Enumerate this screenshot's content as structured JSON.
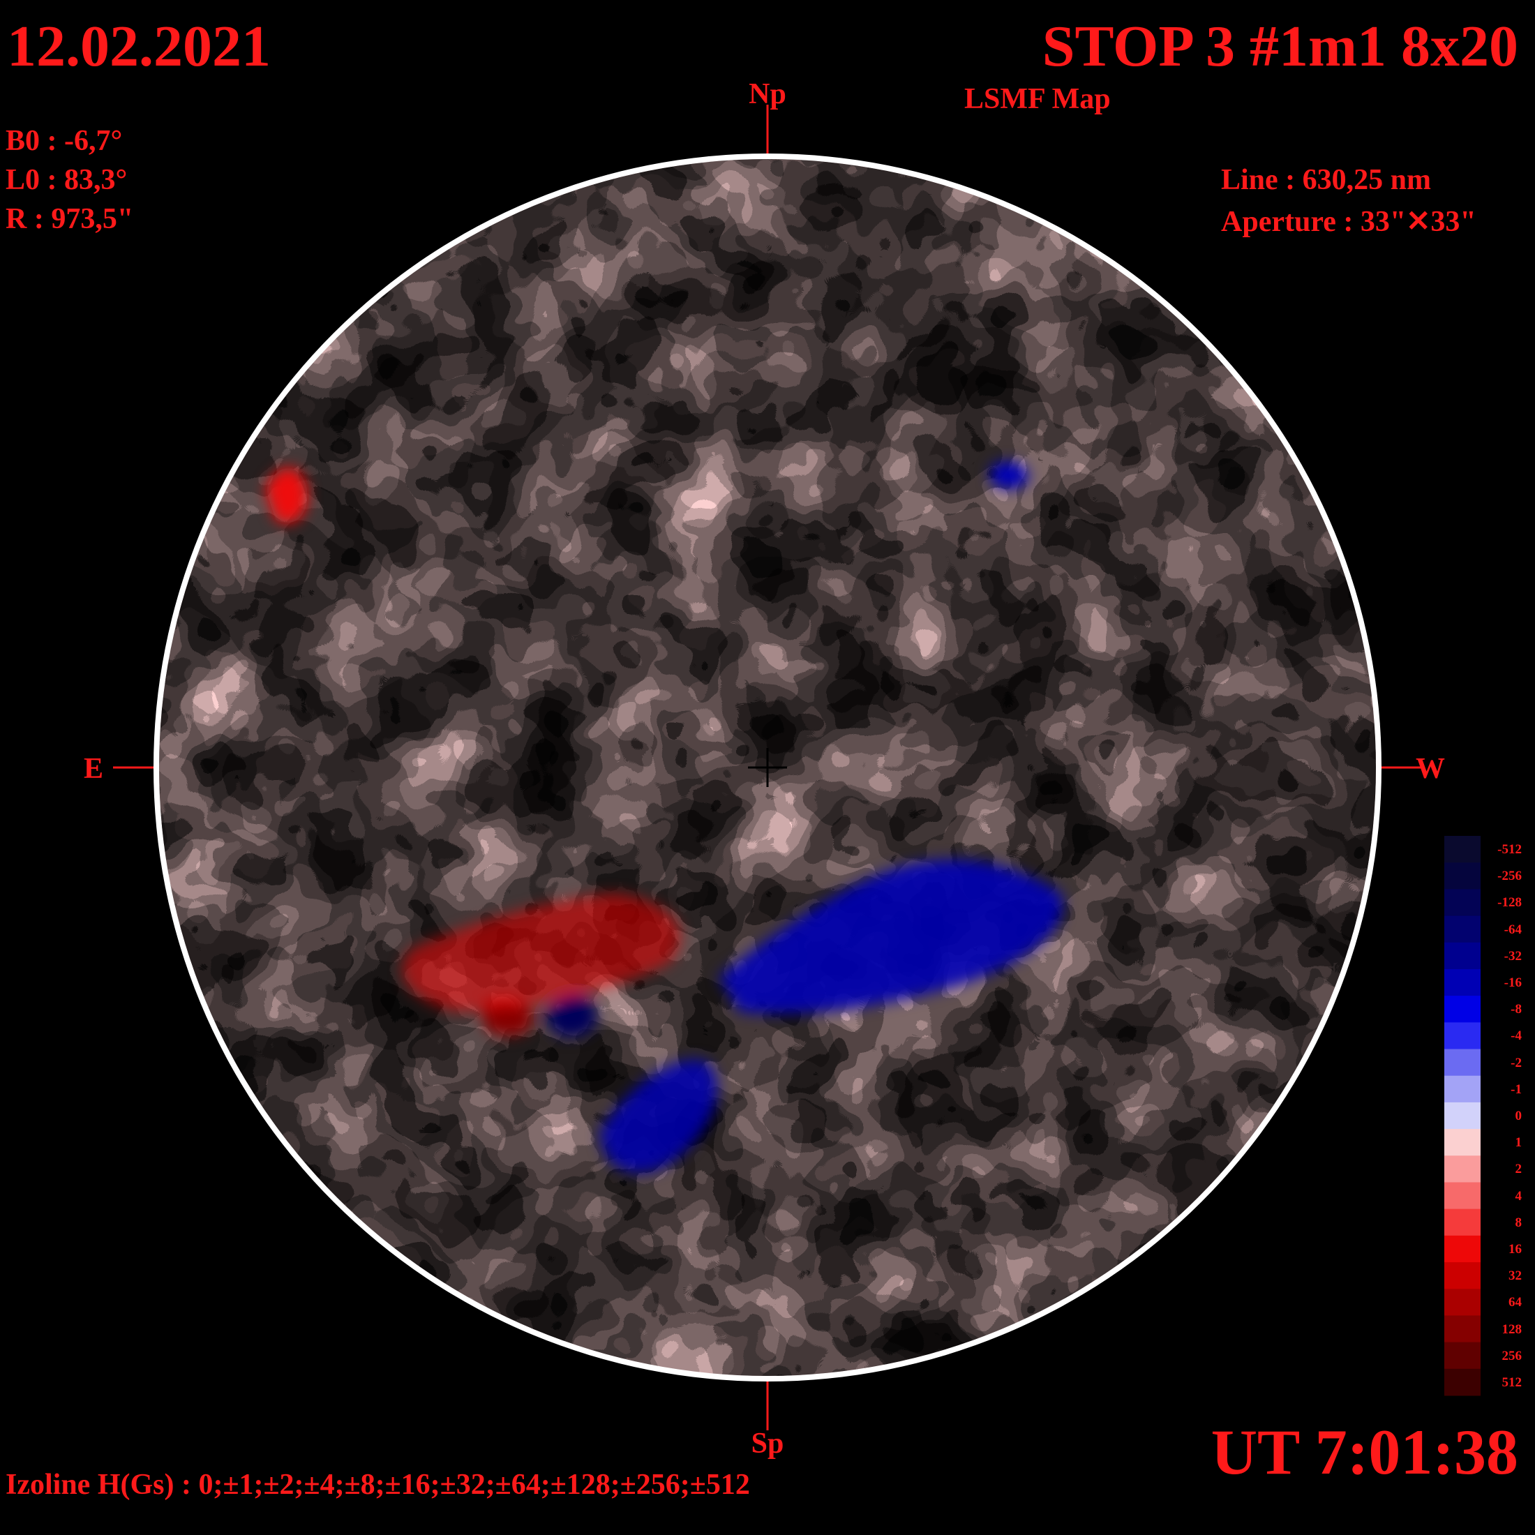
{
  "header": {
    "date": "12.02.2021",
    "title": "STOP 3 #1m1 8x20",
    "subtitle": "LSMF  Map"
  },
  "params": {
    "b0": "B0 : -6,7°",
    "l0": "L0 : 83,3°",
    "r": "R  : 973,5\"",
    "line": "Line :  630,25 nm",
    "aperture": "Aperture : 33\"✕33\""
  },
  "compass": {
    "north": "Np",
    "south": "Sp",
    "east": "E",
    "west": "W"
  },
  "time": "UT 7:01:38",
  "izoline": "Izoline H(Gs) : 0;±1;±2;±4;±8;±16;±32;±64;±128;±256;±512",
  "colorbar": {
    "labels": [
      "-512",
      "-256",
      "-128",
      "-64",
      "-32",
      "-16",
      "-8",
      "-4",
      "-2",
      "-1",
      "0",
      "1",
      "2",
      "4",
      "8",
      "16",
      "32",
      "64",
      "128",
      "256",
      "512"
    ],
    "colors": [
      "#0a0a2e",
      "#05053d",
      "#030355",
      "#02026f",
      "#00008f",
      "#0000b4",
      "#0000e6",
      "#2a2af2",
      "#6b6bf2",
      "#a3a3f6",
      "#d2d2fa",
      "#fbd0d0",
      "#fa9c9c",
      "#f76a6a",
      "#f53b3b",
      "#ee0808",
      "#cc0000",
      "#aa0000",
      "#850000",
      "#600000",
      "#3c0000"
    ]
  },
  "colors": {
    "text": "#ff1a1a",
    "background": "#000000",
    "disk_border": "#ffffff",
    "positive": "#ee0808",
    "negative": "#0000e6"
  }
}
